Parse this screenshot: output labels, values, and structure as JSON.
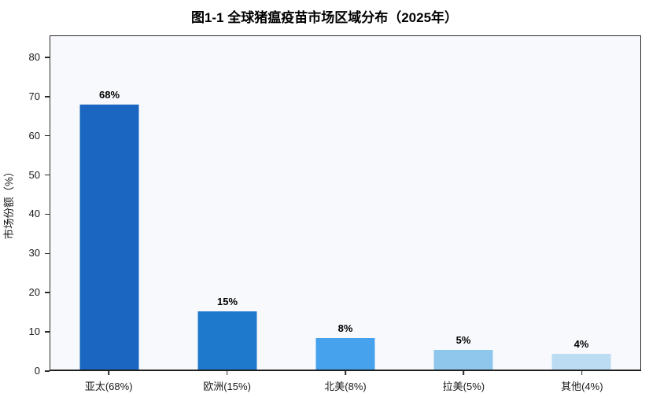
{
  "title": "图1-1 全球猪瘟疫苗市场区域分布（2025年）",
  "chart_data": {
    "type": "bar",
    "title": "图1-1 全球猪瘟疫苗市场区域分布（2025年）",
    "categories": [
      "亚太(68%)",
      "欧洲(15%)",
      "北美(8%)",
      "拉美(5%)",
      "其他(4%)"
    ],
    "values": [
      68,
      15,
      8,
      5,
      4
    ],
    "value_labels": [
      "68%",
      "15%",
      "8%",
      "5%",
      "4%"
    ],
    "xlabel": "",
    "ylabel": "市场份额（%）",
    "ylim": [
      0,
      85.6
    ],
    "yticks": [
      0,
      10,
      20,
      30,
      40,
      50,
      60,
      70,
      80
    ],
    "grid": false,
    "legend": "none",
    "bar_colors": [
      "#1a66c1",
      "#1e78cc",
      "#47a2ee",
      "#8ec6ec",
      "#bcdcf3"
    ],
    "plot_background": "#f8f9fc",
    "figure_background": "#ffffff",
    "spine_color": "#2b2b2b"
  }
}
